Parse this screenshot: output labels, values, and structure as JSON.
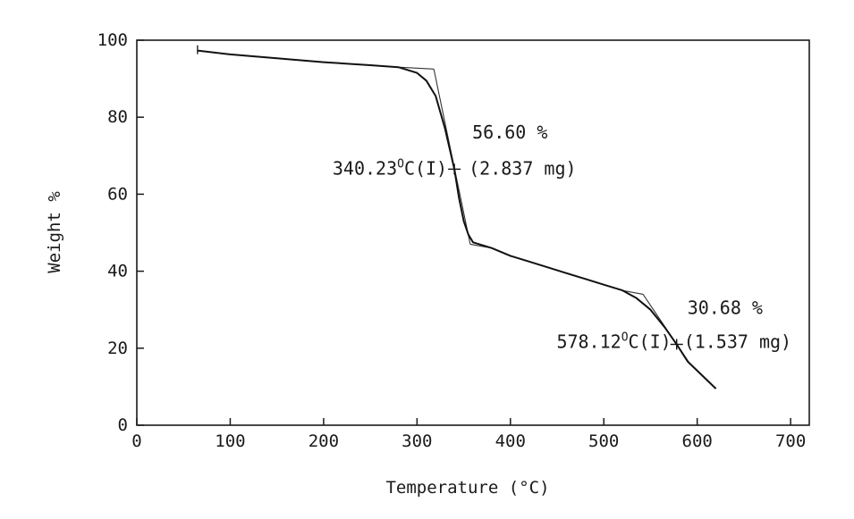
{
  "chart_data": {
    "type": "line",
    "xlabel": "Temperature (°C)",
    "ylabel": "Weight %",
    "xlim": [
      0,
      720
    ],
    "ylim": [
      0,
      100
    ],
    "x_ticks": [
      "0",
      "100",
      "200",
      "300",
      "400",
      "500",
      "600",
      "700"
    ],
    "y_ticks": [
      "0",
      "20",
      "40",
      "60",
      "80",
      "100"
    ],
    "grid": false,
    "series": [
      {
        "points": [
          [
            65,
            97.3
          ],
          [
            100,
            96.3
          ],
          [
            150,
            95.3
          ],
          [
            200,
            94.3
          ],
          [
            250,
            93.5
          ],
          [
            280,
            93.0
          ],
          [
            300,
            91.5
          ],
          [
            310,
            89.5
          ],
          [
            320,
            85.5
          ],
          [
            330,
            77.0
          ],
          [
            340,
            66.5
          ],
          [
            345,
            59.0
          ],
          [
            350,
            53.0
          ],
          [
            355,
            49.5
          ],
          [
            360,
            47.5
          ],
          [
            380,
            46.0
          ],
          [
            400,
            44.0
          ],
          [
            420,
            42.5
          ],
          [
            440,
            41.0
          ],
          [
            460,
            39.5
          ],
          [
            480,
            38.0
          ],
          [
            500,
            36.5
          ],
          [
            520,
            35.0
          ],
          [
            535,
            33.0
          ],
          [
            550,
            30.0
          ],
          [
            565,
            25.5
          ],
          [
            578,
            21.0
          ],
          [
            590,
            16.5
          ],
          [
            605,
            13.0
          ],
          [
            620,
            9.5
          ]
        ]
      }
    ],
    "onset_construction": [
      [
        [
          280,
          93.0
        ],
        [
          318,
          92.5
        ]
      ],
      [
        [
          318,
          92.5
        ],
        [
          357,
          47.0
        ]
      ],
      [
        [
          357,
          47.0
        ],
        [
          380,
          46.0
        ]
      ],
      [
        [
          520,
          35.0
        ],
        [
          542,
          34.0
        ]
      ],
      [
        [
          542,
          34.0
        ],
        [
          592,
          16.0
        ]
      ]
    ],
    "annotations": [
      {
        "id": "step1-loss",
        "text": "56.60 %",
        "x": 340,
        "y": 73.5
      },
      {
        "id": "step1-mass",
        "text": "(2.837 mg)",
        "x": 340,
        "y": 66.5
      },
      {
        "id": "step1-temp",
        "text": "340.23",
        "sup": "O",
        "suffix": "C(I)",
        "x": 340,
        "y": 66.5
      },
      {
        "id": "step2-loss",
        "text": "30.68 %",
        "x": 578,
        "y": 28
      },
      {
        "id": "step2-mass",
        "text": "(1.537 mg)",
        "x": 578,
        "y": 21.5
      },
      {
        "id": "step2-temp",
        "text": "578.12",
        "sup": "O",
        "suffix": "C(I)",
        "x": 578,
        "y": 21.5
      }
    ]
  }
}
